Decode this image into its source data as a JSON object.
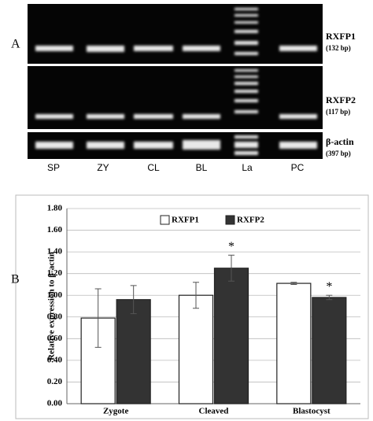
{
  "panel_a": {
    "label": "A",
    "lanes": [
      "SP",
      "ZY",
      "CL",
      "BL",
      "La",
      "PC"
    ],
    "genes": [
      {
        "name": "RXFP1",
        "size": "(132 bp)"
      },
      {
        "name": "RXFP2",
        "size": "(117 bp)"
      },
      {
        "name": "β-actin",
        "size": "(397 bp)"
      }
    ]
  },
  "panel_b": {
    "label": "B"
  },
  "chart_data": {
    "type": "bar",
    "ylabel": "Relative expression to β-actin",
    "categories": [
      "Zygote",
      "Cleaved",
      "Blastocyst"
    ],
    "series": [
      {
        "name": "RXFP1",
        "color": "#ffffff",
        "values": [
          0.79,
          1.0,
          1.11
        ],
        "errors": [
          0.27,
          0.12,
          0.01
        ],
        "markers": [
          null,
          null,
          null
        ]
      },
      {
        "name": "RXFP2",
        "color": "#333333",
        "values": [
          0.96,
          1.25,
          0.98
        ],
        "errors": [
          0.13,
          0.12,
          0.02
        ],
        "markers": [
          null,
          "*",
          "*"
        ]
      }
    ],
    "ylim": [
      0,
      1.8
    ],
    "yticks": [
      {
        "value": 0,
        "label": "0.00"
      },
      {
        "value": 0.2,
        "label": "0.20"
      },
      {
        "value": 0.4,
        "label": "0.40"
      },
      {
        "value": 0.6,
        "label": "0.60"
      },
      {
        "value": 0.8,
        "label": "0.80"
      },
      {
        "value": 1.0,
        "label": "1.00"
      },
      {
        "value": 1.2,
        "label": "1.20"
      },
      {
        "value": 1.4,
        "label": "1.40"
      },
      {
        "value": 1.6,
        "label": "1.60"
      },
      {
        "value": 1.8,
        "label": "1.80"
      }
    ],
    "grid": true,
    "legend": "top"
  }
}
